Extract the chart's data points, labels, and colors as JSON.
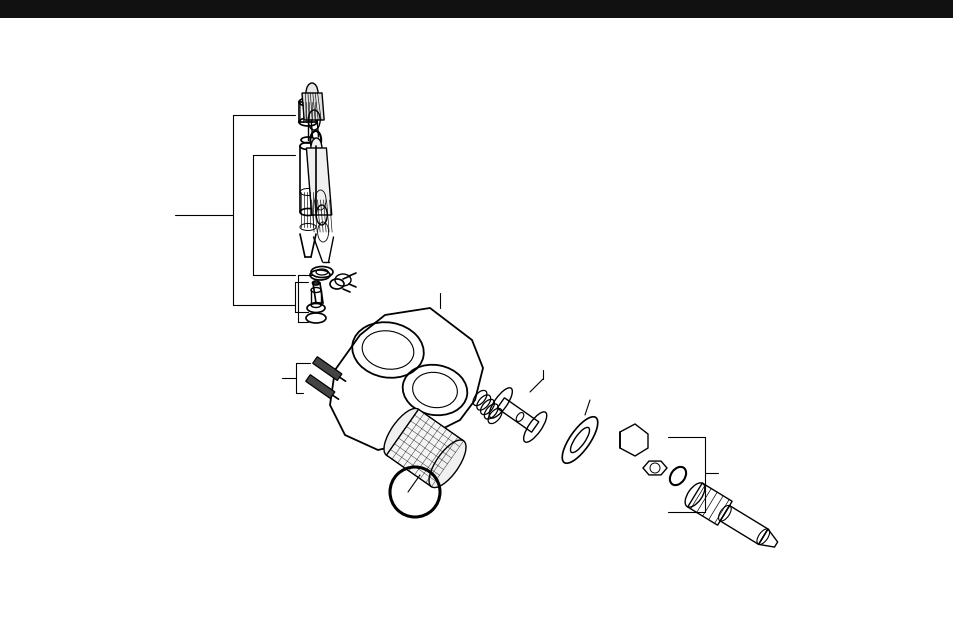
{
  "background_color": "#ffffff",
  "fig_width": 9.54,
  "fig_height": 6.33,
  "dpi": 100
}
